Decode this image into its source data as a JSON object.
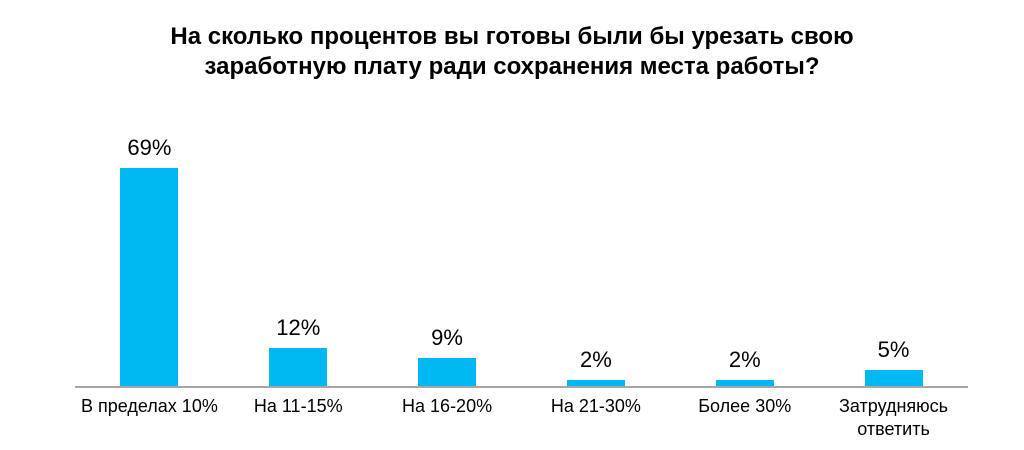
{
  "chart_data": {
    "type": "bar",
    "title": "На сколько процентов вы готовы были бы урезать свою заработную плату ради сохранения места работы?",
    "categories": [
      "В пределах 10%",
      "На 11-15%",
      "На 16-20%",
      "На 21-30%",
      "Более 30%",
      "Затрудняюсь ответить"
    ],
    "values": [
      69,
      12,
      9,
      2,
      2,
      5
    ],
    "value_labels": [
      "69%",
      "12%",
      "9%",
      "2%",
      "2%",
      "5%"
    ],
    "xlabel": "",
    "ylabel": "",
    "ylim": [
      0,
      80
    ],
    "grid": false,
    "legend": false,
    "colors": {
      "bar": "#00B9F2",
      "axis_line": "#A6A6A6",
      "text": "#000000",
      "background": "#FFFFFF"
    }
  }
}
